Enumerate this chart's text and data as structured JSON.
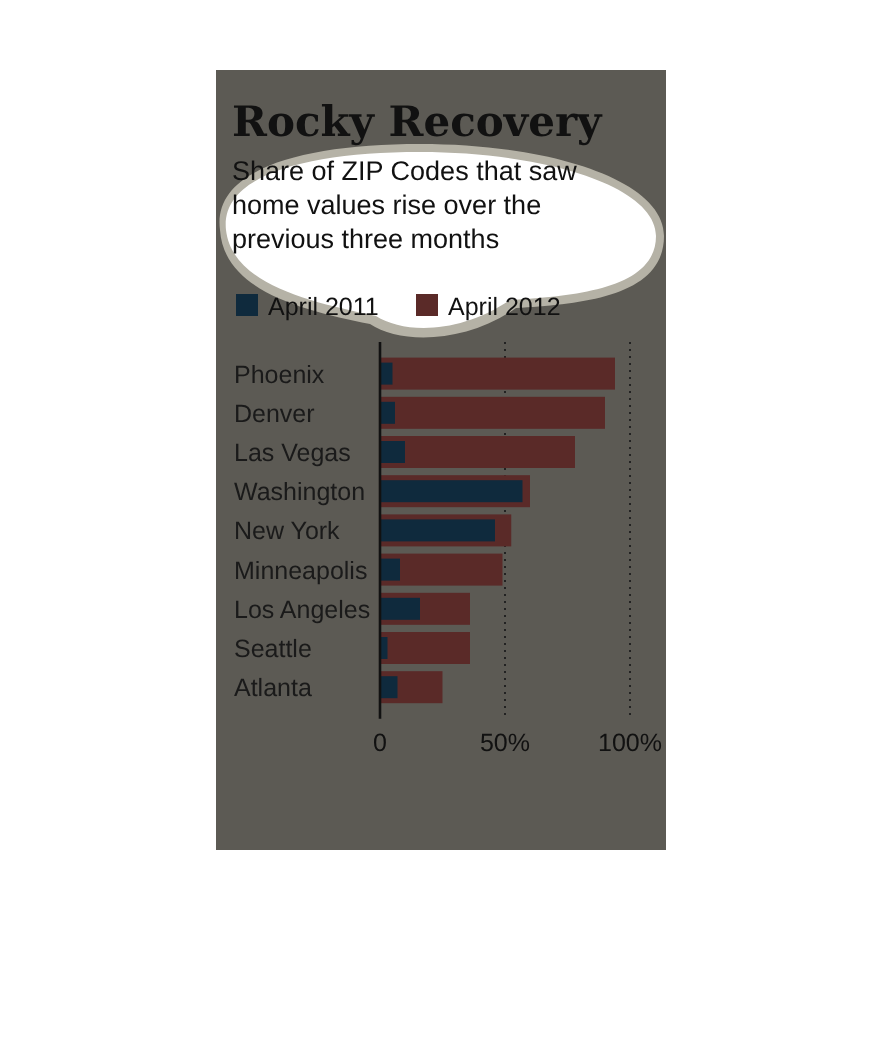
{
  "chart_data": {
    "type": "bar",
    "orientation": "horizontal",
    "title": "Rocky Recovery",
    "subtitle": "Share of ZIP Codes that saw home values rise over the previous three months",
    "categories": [
      "Phoenix",
      "Denver",
      "Las Vegas",
      "Washington",
      "New York",
      "Minneapolis",
      "Los Angeles",
      "Seattle",
      "Atlanta"
    ],
    "series": [
      {
        "name": "April 2012",
        "color": "#5a2a28",
        "values": [
          94,
          90,
          78,
          60,
          52.5,
          49,
          36,
          36,
          25
        ]
      },
      {
        "name": "April 2011",
        "color": "#0f2a3d",
        "values": [
          5,
          6,
          10,
          57,
          46,
          8,
          16,
          3,
          7
        ]
      }
    ],
    "xlim": [
      0,
      100
    ],
    "xticks": [
      0,
      {
        "value": 50,
        "label": "50%"
      },
      {
        "value": 100,
        "label": "100%"
      }
    ],
    "grid": "x",
    "legend": "top"
  }
}
